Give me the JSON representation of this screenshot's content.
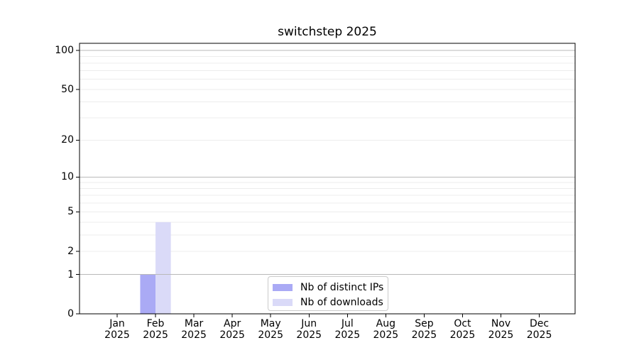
{
  "chart_data": {
    "type": "bar",
    "title": "switchstep 2025",
    "categories": [
      "Jan 2025",
      "Feb 2025",
      "Mar 2025",
      "Apr 2025",
      "May 2025",
      "Jun 2025",
      "Jul 2025",
      "Aug 2025",
      "Sep 2025",
      "Oct 2025",
      "Nov 2025",
      "Dec 2025"
    ],
    "series": [
      {
        "name": "Nb of distinct IPs",
        "color": "#aaaaf5",
        "values": [
          0,
          1,
          0,
          0,
          0,
          0,
          0,
          0,
          0,
          0,
          0,
          0
        ]
      },
      {
        "name": "Nb of downloads",
        "color": "#dadaf8",
        "values": [
          0,
          4,
          0,
          0,
          0,
          0,
          0,
          0,
          0,
          0,
          0,
          0
        ]
      }
    ],
    "xlabel": "",
    "ylabel": "",
    "y_scale": "log10(1+x)",
    "y_ticks": [
      0,
      1,
      2,
      5,
      10,
      20,
      50,
      100
    ],
    "y_major_gridlines": [
      1,
      10,
      100
    ],
    "y_minor_gridlines": [
      2,
      3,
      4,
      5,
      6,
      7,
      8,
      9,
      20,
      30,
      40,
      50,
      60,
      70,
      80,
      90
    ],
    "ylim": [
      0,
      113
    ],
    "grid": true,
    "legend_position": "lower center",
    "colors": {
      "background": "#ffffff",
      "axis": "#000000",
      "major_grid": "#b9b9b9",
      "minor_grid": "#ececec",
      "text": "#000000"
    }
  }
}
